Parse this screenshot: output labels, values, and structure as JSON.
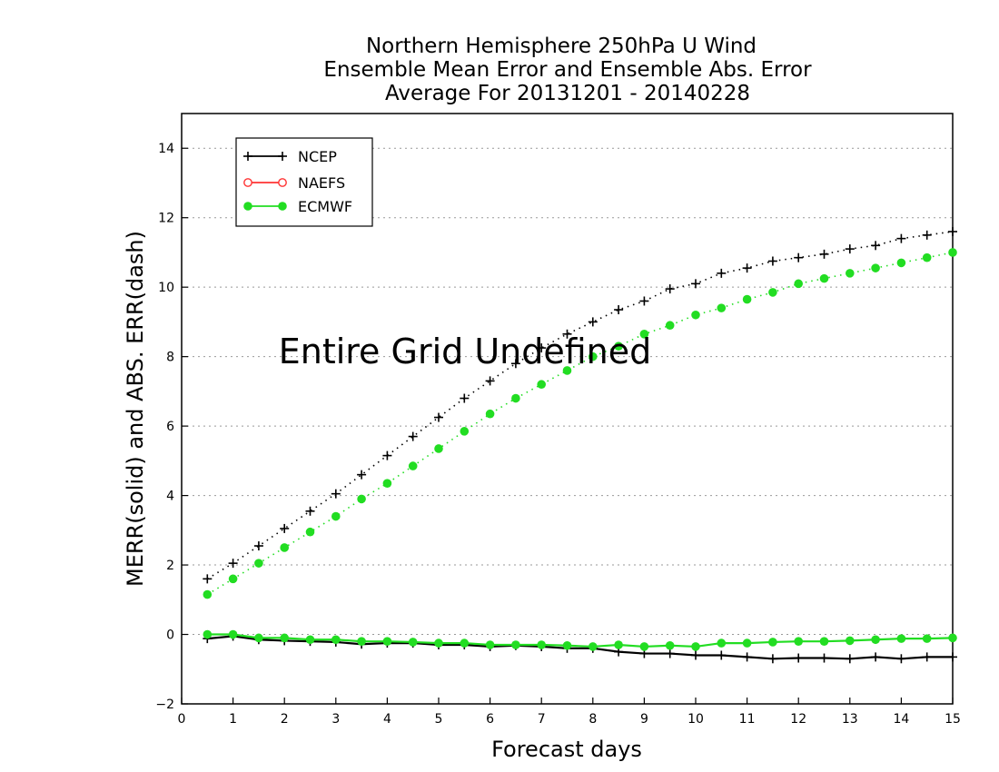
{
  "chart_data": {
    "type": "line",
    "title_lines": [
      "Northern Hemisphere 250hPa U Wind",
      "Ensemble Mean Error and Ensemble Abs. Error",
      "Average For 20131201 - 20140228"
    ],
    "xlabel": "Forecast days",
    "ylabel": "MERR(solid) and ABS. ERR(dash)",
    "xlim": [
      0,
      15
    ],
    "ylim": [
      -2,
      15
    ],
    "x_ticks": [
      "0",
      "1",
      "2",
      "3",
      "4",
      "5",
      "6",
      "7",
      "8",
      "9",
      "10",
      "11",
      "12",
      "13",
      "14",
      "15"
    ],
    "y_ticks": [
      "−2",
      "0",
      "2",
      "4",
      "6",
      "8",
      "10",
      "12",
      "14"
    ],
    "grid": "horizontal dotted",
    "legend_position": "top-left",
    "overlay_text": "Entire Grid Undefined",
    "x": [
      0.5,
      1,
      1.5,
      2,
      2.5,
      3,
      3.5,
      4,
      4.5,
      5,
      5.5,
      6,
      6.5,
      7,
      7.5,
      8,
      8.5,
      9,
      9.5,
      10,
      10.5,
      11,
      11.5,
      12,
      12.5,
      13,
      13.5,
      14,
      14.5,
      15
    ],
    "series": [
      {
        "name": "NCEP",
        "color": "#000000",
        "marker": "plus",
        "merr": [
          -0.12,
          -0.05,
          -0.15,
          -0.18,
          -0.2,
          -0.22,
          -0.28,
          -0.25,
          -0.25,
          -0.3,
          -0.3,
          -0.35,
          -0.32,
          -0.35,
          -0.4,
          -0.4,
          -0.5,
          -0.55,
          -0.55,
          -0.6,
          -0.6,
          -0.65,
          -0.7,
          -0.68,
          -0.68,
          -0.7,
          -0.65,
          -0.7,
          -0.65,
          -0.65
        ],
        "abs_err": [
          1.6,
          2.05,
          2.55,
          3.05,
          3.55,
          4.05,
          4.6,
          5.15,
          5.7,
          6.25,
          6.8,
          7.3,
          7.8,
          8.25,
          8.65,
          9.0,
          9.35,
          9.6,
          9.95,
          10.1,
          10.4,
          10.55,
          10.75,
          10.85,
          10.95,
          11.1,
          11.2,
          11.4,
          11.5,
          11.6
        ]
      },
      {
        "name": "NAEFS",
        "color": "#ff3333",
        "marker": "open-circle",
        "merr": [],
        "abs_err": []
      },
      {
        "name": "ECMWF",
        "color": "#22dd22",
        "marker": "filled-circle",
        "merr": [
          0.0,
          0.0,
          -0.1,
          -0.1,
          -0.15,
          -0.15,
          -0.2,
          -0.2,
          -0.22,
          -0.25,
          -0.25,
          -0.3,
          -0.3,
          -0.3,
          -0.32,
          -0.35,
          -0.3,
          -0.35,
          -0.32,
          -0.35,
          -0.25,
          -0.25,
          -0.22,
          -0.2,
          -0.2,
          -0.18,
          -0.15,
          -0.12,
          -0.12,
          -0.1
        ],
        "abs_err": [
          1.15,
          1.6,
          2.05,
          2.5,
          2.95,
          3.4,
          3.9,
          4.35,
          4.85,
          5.35,
          5.85,
          6.35,
          6.8,
          7.2,
          7.6,
          8.0,
          8.3,
          8.65,
          8.9,
          9.2,
          9.4,
          9.65,
          9.85,
          10.1,
          10.25,
          10.4,
          10.55,
          10.7,
          10.85,
          11.0
        ]
      }
    ]
  }
}
